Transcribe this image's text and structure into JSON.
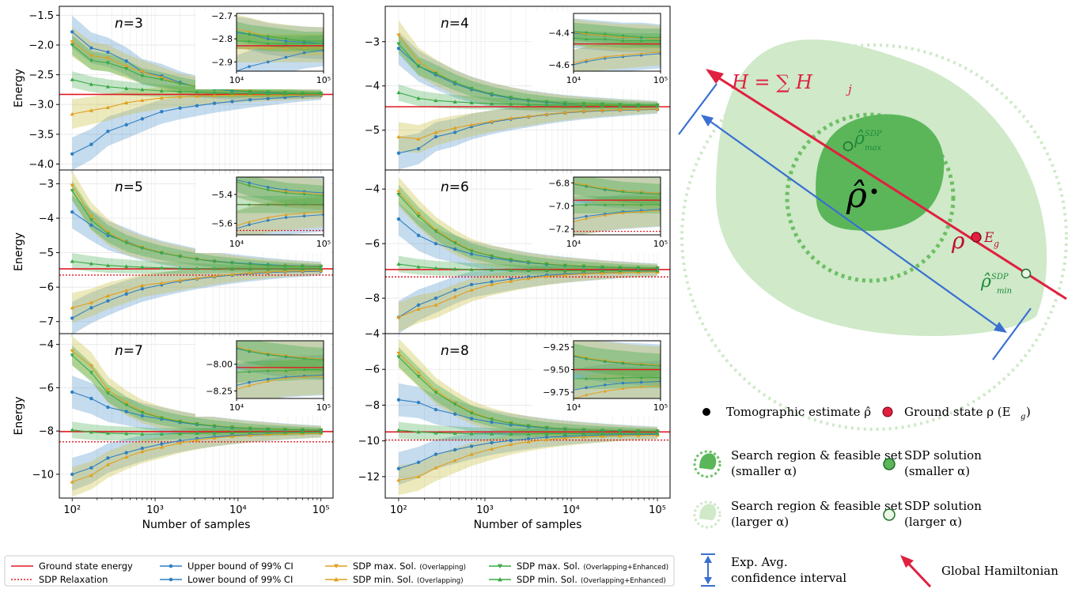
{
  "chart_data": [
    {
      "type": "line",
      "title": "n=3",
      "xlabel": "",
      "ylabel": "Energy",
      "xscale": "log",
      "xlim": [
        70,
        140000
      ],
      "ylim": [
        -4.1,
        -1.35
      ],
      "yticks": [
        "−1.5",
        "−2.0",
        "−2.5",
        "−3.0",
        "−3.5",
        "−4.0"
      ],
      "ytick_values": [
        -1.5,
        -2.0,
        -2.5,
        -3.0,
        -3.5,
        -4.0
      ],
      "ground_state": -2.83,
      "sdp_relaxation": null,
      "x": [
        100,
        170,
        270,
        450,
        700,
        1200,
        2000,
        3200,
        5200,
        8500,
        14000,
        23000,
        37000,
        60000,
        100000
      ],
      "series": {
        "upper": [
          -1.78,
          -2.05,
          -2.12,
          -2.27,
          -2.45,
          -2.52,
          -2.63,
          -2.7,
          -2.74,
          -2.77,
          -2.78,
          -2.8,
          -2.81,
          -2.815,
          -2.82
        ],
        "lower": [
          -3.83,
          -3.67,
          -3.45,
          -3.34,
          -3.24,
          -3.12,
          -3.06,
          -3.02,
          -2.98,
          -2.95,
          -2.92,
          -2.9,
          -2.88,
          -2.86,
          -2.85
        ],
        "sdp_max": [
          -1.95,
          -2.18,
          -2.22,
          -2.36,
          -2.45,
          -2.55,
          -2.65,
          -2.69,
          -2.73,
          -2.75,
          -2.77,
          -2.79,
          -2.8,
          -2.81,
          -2.81
        ],
        "sdp_min": [
          -3.16,
          -3.1,
          -3.05,
          -2.97,
          -2.93,
          -2.89,
          -2.87,
          -2.86,
          -2.85,
          -2.84,
          -2.84,
          -2.84,
          -2.84,
          -2.84,
          -2.84
        ],
        "enh_max": [
          -2.0,
          -2.26,
          -2.3,
          -2.4,
          -2.52,
          -2.58,
          -2.65,
          -2.7,
          -2.74,
          -2.76,
          -2.78,
          -2.79,
          -2.8,
          -2.81,
          -2.81
        ],
        "enh_min": [
          -2.58,
          -2.66,
          -2.7,
          -2.73,
          -2.75,
          -2.77,
          -2.78,
          -2.79,
          -2.8,
          -2.81,
          -2.81,
          -2.82,
          -2.82,
          -2.82,
          -2.82
        ]
      },
      "inset": {
        "ylim": [
          -2.94,
          -2.69
        ],
        "yticks": [
          "−2.7",
          "−2.8",
          "−2.9"
        ],
        "ytick_values": [
          -2.7,
          -2.8,
          -2.9
        ],
        "xticks": [
          "10⁴",
          "10⁵"
        ]
      }
    },
    {
      "type": "line",
      "title": "n=4",
      "xlabel": "",
      "ylabel": "",
      "xscale": "log",
      "xlim": [
        70,
        140000
      ],
      "ylim": [
        -5.9,
        -2.2
      ],
      "yticks": [
        "−3",
        "−4",
        "−5"
      ],
      "ytick_values": [
        -3,
        -4,
        -5
      ],
      "ground_state": -4.47,
      "sdp_relaxation": null,
      "x": [
        100,
        170,
        270,
        450,
        700,
        1200,
        2000,
        3200,
        5200,
        8500,
        14000,
        23000,
        37000,
        60000,
        100000
      ],
      "series": {
        "upper": [
          -3.15,
          -3.55,
          -3.75,
          -3.95,
          -4.08,
          -4.2,
          -4.28,
          -4.33,
          -4.37,
          -4.4,
          -4.41,
          -4.42,
          -4.43,
          -4.43,
          -4.44
        ],
        "lower": [
          -5.52,
          -5.42,
          -5.15,
          -5.05,
          -4.92,
          -4.82,
          -4.75,
          -4.7,
          -4.65,
          -4.61,
          -4.58,
          -4.56,
          -4.55,
          -4.54,
          -4.53
        ],
        "sdp_max": [
          -2.85,
          -3.45,
          -3.7,
          -3.92,
          -4.06,
          -4.18,
          -4.26,
          -4.32,
          -4.36,
          -4.39,
          -4.41,
          -4.42,
          -4.43,
          -4.43,
          -4.44
        ],
        "sdp_min": [
          -5.15,
          -5.2,
          -5.05,
          -4.95,
          -4.88,
          -4.8,
          -4.73,
          -4.69,
          -4.64,
          -4.6,
          -4.57,
          -4.55,
          -4.54,
          -4.53,
          -4.52
        ],
        "enh_max": [
          -3.05,
          -3.55,
          -3.72,
          -3.92,
          -4.06,
          -4.18,
          -4.26,
          -4.32,
          -4.36,
          -4.39,
          -4.4,
          -4.41,
          -4.42,
          -4.43,
          -4.43
        ],
        "enh_min": [
          -4.15,
          -4.28,
          -4.33,
          -4.36,
          -4.38,
          -4.4,
          -4.41,
          -4.42,
          -4.43,
          -4.43,
          -4.44,
          -4.44,
          -4.45,
          -4.45,
          -4.45
        ]
      },
      "inset": {
        "ylim": [
          -4.64,
          -4.28
        ],
        "yticks": [
          "−4.4",
          "−4.6"
        ],
        "ytick_values": [
          -4.4,
          -4.6
        ],
        "xticks": [
          "10⁴",
          "10⁵"
        ]
      }
    },
    {
      "type": "line",
      "title": "n=5",
      "xlabel": "",
      "ylabel": "Energy",
      "xscale": "log",
      "xlim": [
        70,
        140000
      ],
      "ylim": [
        -7.35,
        -2.6
      ],
      "yticks": [
        "−3",
        "−4",
        "−5",
        "−6",
        "−7"
      ],
      "ytick_values": [
        -3,
        -4,
        -5,
        -6,
        -7
      ],
      "ground_state": -5.47,
      "sdp_relaxation": -5.65,
      "x": [
        100,
        170,
        270,
        450,
        700,
        1200,
        2000,
        3200,
        5200,
        8500,
        14000,
        23000,
        37000,
        60000,
        100000
      ],
      "series": {
        "upper": [
          -3.82,
          -4.2,
          -4.5,
          -4.68,
          -4.85,
          -5.0,
          -5.1,
          -5.18,
          -5.24,
          -5.29,
          -5.32,
          -5.35,
          -5.37,
          -5.38,
          -5.39
        ],
        "lower": [
          -6.9,
          -6.6,
          -6.4,
          -6.2,
          -6.05,
          -5.93,
          -5.83,
          -5.76,
          -5.7,
          -5.65,
          -5.61,
          -5.58,
          -5.56,
          -5.55,
          -5.54
        ],
        "sdp_max": [
          -3.05,
          -3.95,
          -4.4,
          -4.7,
          -4.85,
          -5.0,
          -5.1,
          -5.18,
          -5.25,
          -5.3,
          -5.34,
          -5.37,
          -5.38,
          -5.39,
          -5.4
        ],
        "sdp_min": [
          -6.6,
          -6.45,
          -6.25,
          -6.1,
          -5.95,
          -5.88,
          -5.8,
          -5.74,
          -5.68,
          -5.63,
          -5.59,
          -5.56,
          -5.54,
          -5.53,
          -5.52
        ],
        "enh_max": [
          -3.2,
          -4.05,
          -4.45,
          -4.72,
          -4.87,
          -5.01,
          -5.11,
          -5.19,
          -5.26,
          -5.3,
          -5.34,
          -5.37,
          -5.39,
          -5.4,
          -5.41
        ],
        "enh_min": [
          -5.25,
          -5.32,
          -5.37,
          -5.4,
          -5.42,
          -5.44,
          -5.45,
          -5.46,
          -5.46,
          -5.47,
          -5.47,
          -5.47,
          -5.47,
          -5.47,
          -5.47
        ]
      },
      "inset": {
        "ylim": [
          -5.68,
          -5.28
        ],
        "yticks": [
          "−5.4",
          "−5.6"
        ],
        "ytick_values": [
          -5.4,
          -5.6
        ],
        "xticks": [
          "10⁴",
          "10⁵"
        ]
      }
    },
    {
      "type": "line",
      "title": "n=6",
      "xlabel": "",
      "ylabel": "",
      "xscale": "log",
      "xlim": [
        70,
        140000
      ],
      "ylim": [
        -9.3,
        -3.3
      ],
      "yticks": [
        "−4",
        "−6",
        "−8"
      ],
      "ytick_values": [
        -4,
        -6,
        -8
      ],
      "ground_state": -6.95,
      "sdp_relaxation": -7.22,
      "x": [
        100,
        170,
        270,
        450,
        700,
        1200,
        2000,
        3200,
        5200,
        8500,
        14000,
        23000,
        37000,
        60000,
        100000
      ],
      "series": {
        "upper": [
          -5.1,
          -5.7,
          -6.0,
          -6.2,
          -6.38,
          -6.52,
          -6.62,
          -6.7,
          -6.76,
          -6.8,
          -6.83,
          -6.86,
          -6.87,
          -6.88,
          -6.89
        ],
        "lower": [
          -8.7,
          -8.25,
          -8.0,
          -7.7,
          -7.5,
          -7.4,
          -7.3,
          -7.22,
          -7.16,
          -7.12,
          -7.09,
          -7.07,
          -7.05,
          -7.04,
          -7.03
        ],
        "sdp_max": [
          -4.1,
          -4.9,
          -5.5,
          -5.95,
          -6.25,
          -6.45,
          -6.58,
          -6.68,
          -6.74,
          -6.79,
          -6.82,
          -6.85,
          -6.87,
          -6.88,
          -6.89
        ],
        "sdp_min": [
          -8.7,
          -8.4,
          -8.25,
          -7.95,
          -7.7,
          -7.5,
          -7.38,
          -7.28,
          -7.2,
          -7.15,
          -7.11,
          -7.08,
          -7.06,
          -7.05,
          -7.04
        ],
        "enh_max": [
          -4.2,
          -5.0,
          -5.55,
          -5.98,
          -6.27,
          -6.46,
          -6.59,
          -6.68,
          -6.75,
          -6.8,
          -6.83,
          -6.86,
          -6.88,
          -6.89,
          -6.9
        ],
        "enh_min": [
          -6.75,
          -6.85,
          -6.9,
          -6.93,
          -6.95,
          -6.96,
          -6.97,
          -6.98,
          -6.98,
          -6.99,
          -6.99,
          -6.99,
          -6.99,
          -6.99,
          -6.99
        ]
      },
      "inset": {
        "ylim": [
          -7.25,
          -6.75
        ],
        "yticks": [
          "−6.8",
          "−7.0",
          "−7.2"
        ],
        "ytick_values": [
          -6.8,
          -7.0,
          -7.2
        ],
        "xticks": [
          "10⁴",
          "10⁵"
        ]
      }
    },
    {
      "type": "line",
      "title": "n=7",
      "xlabel": "Number of samples",
      "ylabel": "Energy",
      "xscale": "log",
      "xlim": [
        70,
        140000
      ],
      "ylim": [
        -11.1,
        -3.5
      ],
      "yticks": [
        "−4",
        "−6",
        "−8",
        "−10"
      ],
      "ytick_values": [
        -4,
        -6,
        -8,
        -10
      ],
      "xticks": [
        "10²",
        "10³",
        "10⁴",
        "10⁵"
      ],
      "xtick_values": [
        100,
        1000,
        10000,
        100000
      ],
      "ground_state": -8.03,
      "sdp_relaxation": -8.5,
      "x": [
        100,
        170,
        270,
        450,
        700,
        1200,
        2000,
        3200,
        5200,
        8500,
        14000,
        23000,
        37000,
        60000,
        100000
      ],
      "series": {
        "upper": [
          -6.2,
          -6.5,
          -6.9,
          -7.1,
          -7.3,
          -7.45,
          -7.6,
          -7.7,
          -7.78,
          -7.84,
          -7.88,
          -7.91,
          -7.93,
          -7.94,
          -7.95
        ],
        "lower": [
          -10.0,
          -9.7,
          -9.25,
          -9.0,
          -8.8,
          -8.6,
          -8.45,
          -8.35,
          -8.27,
          -8.21,
          -8.17,
          -8.14,
          -8.12,
          -8.11,
          -8.1
        ],
        "sdp_max": [
          -4.3,
          -5.0,
          -6.1,
          -6.7,
          -7.1,
          -7.38,
          -7.55,
          -7.67,
          -7.76,
          -7.82,
          -7.87,
          -7.9,
          -7.92,
          -7.94,
          -7.95
        ],
        "sdp_min": [
          -10.35,
          -10.05,
          -9.55,
          -9.2,
          -8.95,
          -8.75,
          -8.55,
          -8.42,
          -8.32,
          -8.25,
          -8.2,
          -8.16,
          -8.13,
          -8.12,
          -8.11
        ],
        "enh_max": [
          -4.5,
          -5.3,
          -6.25,
          -6.8,
          -7.15,
          -7.4,
          -7.57,
          -7.68,
          -7.77,
          -7.83,
          -7.88,
          -7.91,
          -7.93,
          -7.95,
          -7.96
        ],
        "enh_min": [
          -7.95,
          -8.05,
          -8.1,
          -8.12,
          -8.14,
          -8.14,
          -8.12,
          -8.1,
          -8.09,
          -8.08,
          -8.07,
          -8.06,
          -8.06,
          -8.05,
          -8.05
        ]
      },
      "inset": {
        "ylim": [
          -8.32,
          -7.78
        ],
        "yticks": [
          "−8.00",
          "−8.25"
        ],
        "ytick_values": [
          -8.0,
          -8.25
        ],
        "xticks": [
          "10⁴",
          "10⁵"
        ]
      }
    },
    {
      "type": "line",
      "title": "n=8",
      "xlabel": "Number of samples",
      "ylabel": "",
      "xscale": "log",
      "xlim": [
        70,
        140000
      ],
      "ylim": [
        -13.2,
        -4.0
      ],
      "yticks": [
        "−4",
        "−6",
        "−8",
        "−10",
        "−12"
      ],
      "ytick_values": [
        -4,
        -6,
        -8,
        -10,
        -12
      ],
      "xticks": [
        "10²",
        "10³",
        "10⁴",
        "10⁵"
      ],
      "xtick_values": [
        100,
        1000,
        10000,
        100000
      ],
      "ground_state": -9.5,
      "sdp_relaxation": -9.95,
      "x": [
        100,
        170,
        270,
        450,
        700,
        1200,
        2000,
        3200,
        5200,
        8500,
        14000,
        23000,
        37000,
        60000,
        100000
      ],
      "series": {
        "upper": [
          -7.7,
          -7.85,
          -8.25,
          -8.5,
          -8.75,
          -8.95,
          -9.1,
          -9.2,
          -9.28,
          -9.34,
          -9.38,
          -9.41,
          -9.43,
          -9.44,
          -9.45
        ],
        "lower": [
          -11.55,
          -11.2,
          -10.75,
          -10.5,
          -10.3,
          -10.1,
          -9.98,
          -9.88,
          -9.8,
          -9.74,
          -9.7,
          -9.67,
          -9.65,
          -9.64,
          -9.63
        ],
        "sdp_max": [
          -5.1,
          -6.2,
          -7.2,
          -7.9,
          -8.4,
          -8.78,
          -9.0,
          -9.15,
          -9.25,
          -9.32,
          -9.37,
          -9.4,
          -9.42,
          -9.44,
          -9.45
        ],
        "sdp_min": [
          -12.2,
          -12.0,
          -11.5,
          -11.1,
          -10.75,
          -10.45,
          -10.2,
          -10.05,
          -9.93,
          -9.84,
          -9.78,
          -9.74,
          -9.71,
          -9.69,
          -9.68
        ],
        "enh_max": [
          -5.3,
          -6.4,
          -7.3,
          -7.95,
          -8.45,
          -8.8,
          -9.02,
          -9.16,
          -9.26,
          -9.33,
          -9.38,
          -9.41,
          -9.43,
          -9.45,
          -9.46
        ],
        "enh_min": [
          -9.4,
          -9.5,
          -9.55,
          -9.58,
          -9.6,
          -9.61,
          -9.61,
          -9.61,
          -9.6,
          -9.6,
          -9.6,
          -9.6,
          -9.59,
          -9.59,
          -9.59
        ]
      },
      "inset": {
        "ylim": [
          -9.82,
          -9.18
        ],
        "yticks": [
          "−9.25",
          "−9.50",
          "−9.75"
        ],
        "ytick_values": [
          -9.25,
          -9.5,
          -9.75
        ],
        "xticks": [
          "10⁴",
          "10⁵"
        ]
      }
    }
  ],
  "colors": {
    "upper": "#2f7fc1",
    "lower": "#2f7fc1",
    "sdp_max": "#e0a020",
    "sdp_min": "#e0a020",
    "enh_max": "#3aa845",
    "enh_min": "#3aa845",
    "ground": "#e01b24",
    "relax": "#e01b24"
  },
  "legend": {
    "ground": "Ground state energy",
    "relax": "SDP Relaxation",
    "upper": "Upper bound of 99% CI",
    "lower": "Lower bound of 99% CI",
    "sdp_max": "SDP max. Sol.",
    "sdp_min": "SDP min. Sol.",
    "overlap": "(Overlapping)",
    "enh_max": "SDP max. Sol.",
    "enh_min": "SDP min. Sol.",
    "enh_tag": "(Overlapping+Enhanced)"
  },
  "diagram": {
    "hamiltonian": "H = ∑ H",
    "hamiltonian_sub": "j",
    "rho_hat": "ρ̂",
    "rho_max": "ρ̂",
    "rho_max_sup": "SDP",
    "rho_max_sub": "max",
    "rho_min": "ρ̂",
    "rho_min_sup": "SDP",
    "rho_min_sub": "min",
    "rho": "ρ",
    "eg": "E",
    "eg_sub": "g"
  },
  "diagram_legend": {
    "tomo": "Tomographic estimate ρ̂",
    "ground": "Ground state ρ (E",
    "ground_sub": "g",
    "ground_end": ")",
    "search_small_1": "Search region & feasible set",
    "search_small_2": "(smaller α)",
    "sdp_small_1": "SDP solution",
    "sdp_small_2": "(smaller α)",
    "search_large_1": "Search region & feasible set",
    "search_large_2": "(larger α)",
    "sdp_large_1": "SDP solution",
    "sdp_large_2": "(larger α)",
    "ci_1": "Exp. Avg.",
    "ci_2": "confidence interval",
    "hamiltonian": "Global Hamiltonian"
  }
}
